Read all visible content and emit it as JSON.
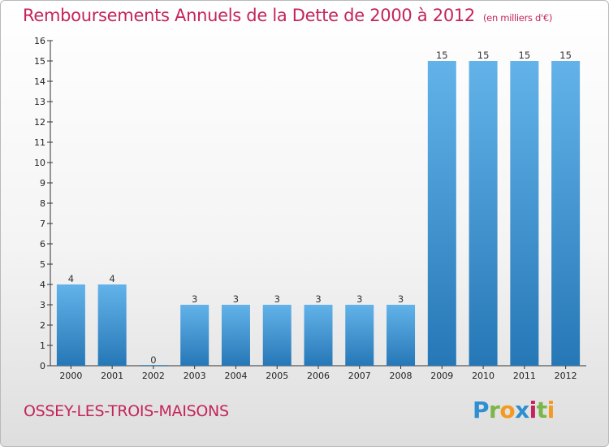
{
  "header": {
    "title": "Remboursements Annuels de la Dette de 2000 à 2012",
    "unit": "(en milliers d'€)"
  },
  "footer": {
    "city": "OSSEY-LES-TROIS-MAISONS",
    "logo": [
      "P",
      "r",
      "o",
      "x",
      "i",
      "t",
      "i"
    ]
  },
  "colors": {
    "title": "#c4245a",
    "bar_top": "#63b3ea",
    "bar_bottom": "#2677b6",
    "axis": "#333333"
  },
  "chart_data": {
    "type": "bar",
    "title": "Remboursements Annuels de la Dette de 2000 à 2012",
    "xlabel": "",
    "ylabel": "",
    "categories": [
      "2000",
      "2001",
      "2002",
      "2003",
      "2004",
      "2005",
      "2006",
      "2007",
      "2008",
      "2009",
      "2010",
      "2011",
      "2012"
    ],
    "values": [
      4,
      4,
      0,
      3,
      3,
      3,
      3,
      3,
      3,
      15,
      15,
      15,
      15
    ],
    "ylim": [
      0,
      16
    ],
    "yticks": [
      0,
      1,
      2,
      3,
      4,
      5,
      6,
      7,
      8,
      9,
      10,
      11,
      12,
      13,
      14,
      15,
      16
    ],
    "grid": false,
    "legend": "none"
  }
}
